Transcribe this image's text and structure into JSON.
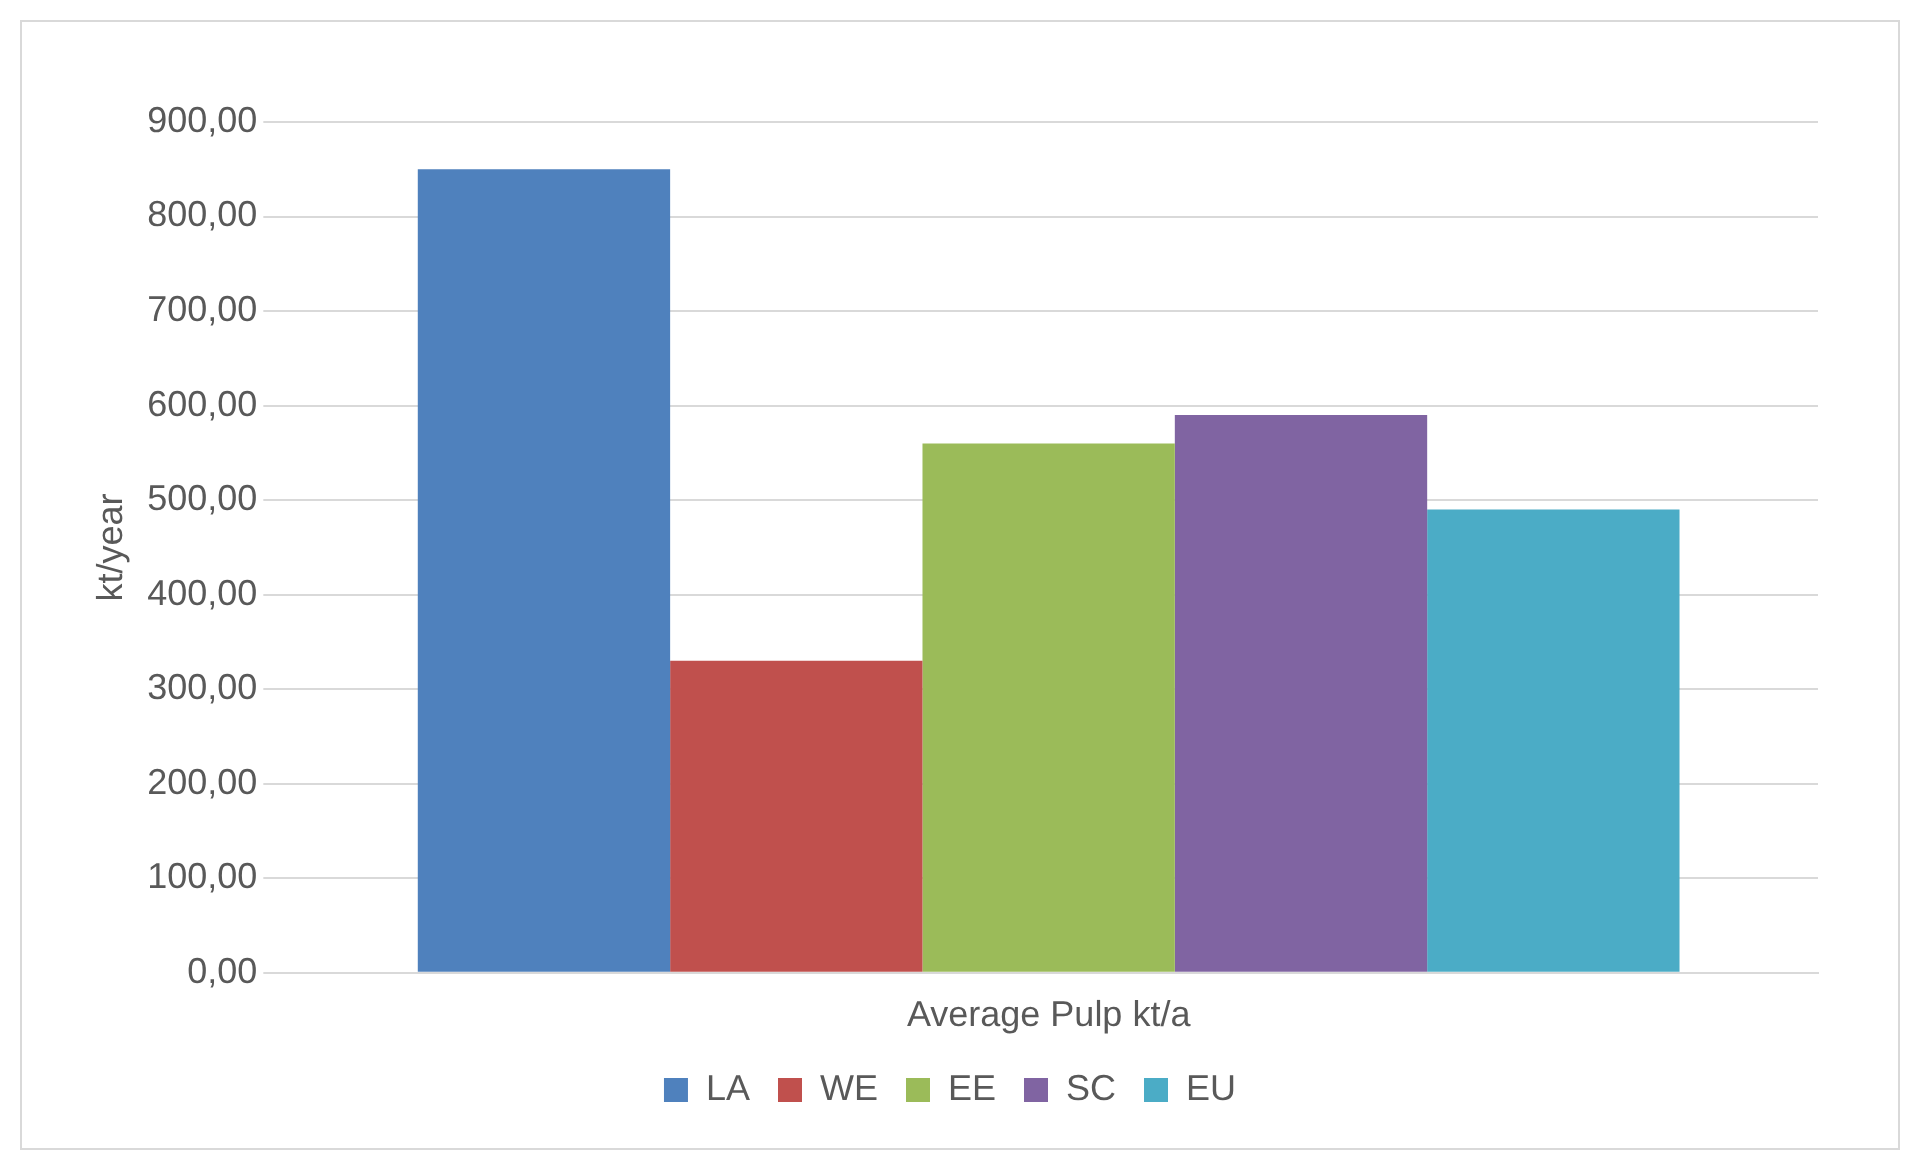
{
  "chart_data": {
    "type": "bar",
    "ylabel": "kt/year",
    "categories": [
      "Average Pulp kt/a"
    ],
    "series": [
      {
        "name": "LA",
        "color": "#4f81bd",
        "values": [
          850
        ]
      },
      {
        "name": "WE",
        "color": "#c0504d",
        "values": [
          330
        ]
      },
      {
        "name": "EE",
        "color": "#9bbb59",
        "values": [
          560
        ]
      },
      {
        "name": "SC",
        "color": "#8064a2",
        "values": [
          590
        ]
      },
      {
        "name": "EU",
        "color": "#4bacc6",
        "values": [
          490
        ]
      }
    ],
    "ylim": [
      0,
      900
    ],
    "yticks": [
      {
        "value": 0,
        "label": "0,00"
      },
      {
        "value": 100,
        "label": "100,00"
      },
      {
        "value": 200,
        "label": "200,00"
      },
      {
        "value": 300,
        "label": "300,00"
      },
      {
        "value": 400,
        "label": "400,00"
      },
      {
        "value": 500,
        "label": "500,00"
      },
      {
        "value": 600,
        "label": "600,00"
      },
      {
        "value": 700,
        "label": "700,00"
      },
      {
        "value": 800,
        "label": "800,00"
      },
      {
        "value": 900,
        "label": "900,00"
      }
    ],
    "grid": "y",
    "legend": "bottom"
  }
}
